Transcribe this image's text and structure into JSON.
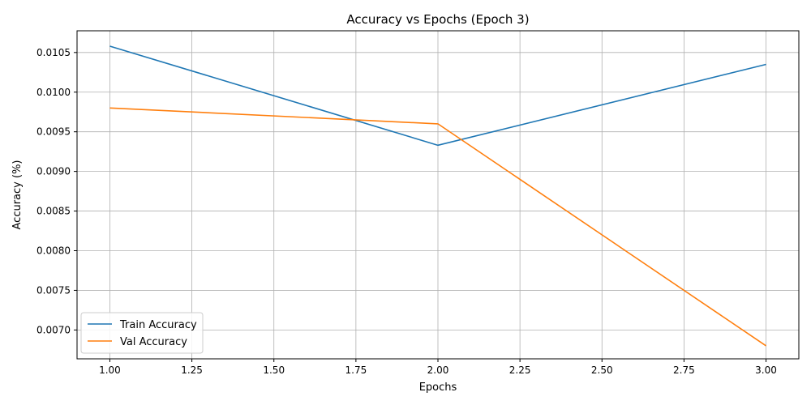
{
  "chart_data": {
    "type": "line",
    "title": "Accuracy vs Epochs (Epoch 3)",
    "xlabel": "Epochs",
    "ylabel": "Accuracy (%)",
    "x": [
      1.0,
      2.0,
      3.0
    ],
    "xlim": [
      0.9,
      3.1
    ],
    "ylim": [
      0.006636,
      0.010774
    ],
    "xticks": [
      1.0,
      1.25,
      1.5,
      1.75,
      2.0,
      2.25,
      2.5,
      2.75,
      3.0
    ],
    "xtick_labels": [
      "1.00",
      "1.25",
      "1.50",
      "1.75",
      "2.00",
      "2.25",
      "2.50",
      "2.75",
      "3.00"
    ],
    "yticks": [
      0.007,
      0.0075,
      0.008,
      0.0085,
      0.009,
      0.0095,
      0.01,
      0.0105
    ],
    "ytick_labels": [
      "0.0070",
      "0.0075",
      "0.0080",
      "0.0085",
      "0.0090",
      "0.0095",
      "0.0100",
      "0.0105"
    ],
    "grid": true,
    "legend_position": "lower-left",
    "series": [
      {
        "name": "Train Accuracy",
        "values": [
          0.01058,
          0.00933,
          0.01035
        ],
        "color": "#1f77b4"
      },
      {
        "name": "Val Accuracy",
        "values": [
          0.0098,
          0.0096,
          0.0068
        ],
        "color": "#ff7f0e"
      }
    ]
  }
}
